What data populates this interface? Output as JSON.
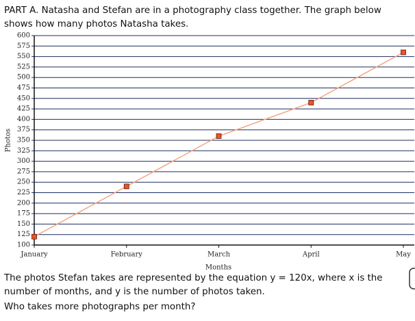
{
  "intro": "PART A. Natasha and Stefan are in a photography class together. The graph below shows how many photos Natasha takes.",
  "chart_data": {
    "type": "line",
    "x_label": "Months",
    "y_label": "Photos",
    "categories": [
      "January",
      "February",
      "March",
      "April",
      "May"
    ],
    "values": [
      120,
      240,
      360,
      440,
      560
    ],
    "color": "#f4a582",
    "marker_color": "#e8542c",
    "ylim": [
      100,
      600
    ],
    "yticks": [
      100,
      125,
      150,
      175,
      200,
      225,
      250,
      275,
      300,
      325,
      350,
      375,
      400,
      425,
      450,
      475,
      500,
      525,
      550,
      575,
      600
    ],
    "grid": true
  },
  "question_text": "The photos Stefan takes are represented by the equation y = 120x, where x is the number of months, and y is the number of photos taken.",
  "question": "Who takes more photographs per month?"
}
